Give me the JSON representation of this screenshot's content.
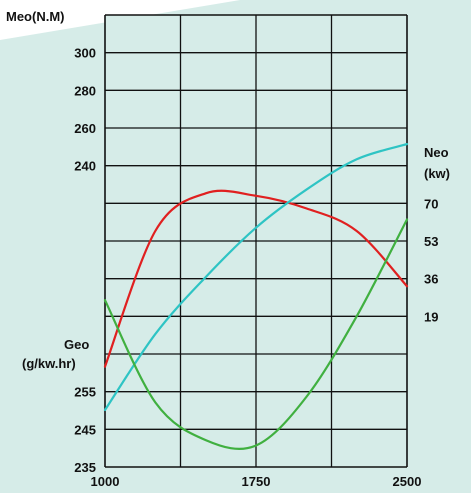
{
  "chart_data": {
    "type": "line",
    "colors": {
      "background": "#d6ece8",
      "plot_area": "#d6ece8",
      "grid": "#111111",
      "torque": "#e02020",
      "power": "#2ec4c4",
      "consumption": "#40b040"
    },
    "x": [
      1000,
      1250,
      1500,
      1750,
      2000,
      2250,
      2500
    ],
    "xlim": [
      1000,
      2500
    ],
    "xticks": [
      "1000",
      "1750",
      "2500"
    ],
    "axes": {
      "torque": {
        "title": "Meo(N.M)",
        "ticks": [
          "300",
          "280",
          "260",
          "240"
        ],
        "ylim": [
          230,
          320
        ]
      },
      "power": {
        "title_line1": "Neo",
        "title_line2": "(kw)",
        "ticks": [
          "70",
          "53",
          "36",
          "19"
        ],
        "ylim": [
          -15,
          104
        ]
      },
      "consumption": {
        "title_line1": "Geo",
        "title_line2": "(g/kw.hr)",
        "ticks": [
          "255",
          "245",
          "235"
        ],
        "ylim": [
          233,
          275
        ]
      }
    },
    "series": [
      {
        "key": "torque",
        "axis": "torque",
        "values": [
          250,
          277,
          284.5,
          284,
          281.5,
          277,
          266
        ]
      },
      {
        "key": "power",
        "axis": "power",
        "values": [
          0,
          20,
          35,
          48,
          58,
          66,
          70
        ]
      },
      {
        "key": "consumption",
        "axis": "consumption",
        "values": [
          248.5,
          239,
          235.5,
          235,
          239.5,
          247,
          256
        ]
      }
    ]
  }
}
